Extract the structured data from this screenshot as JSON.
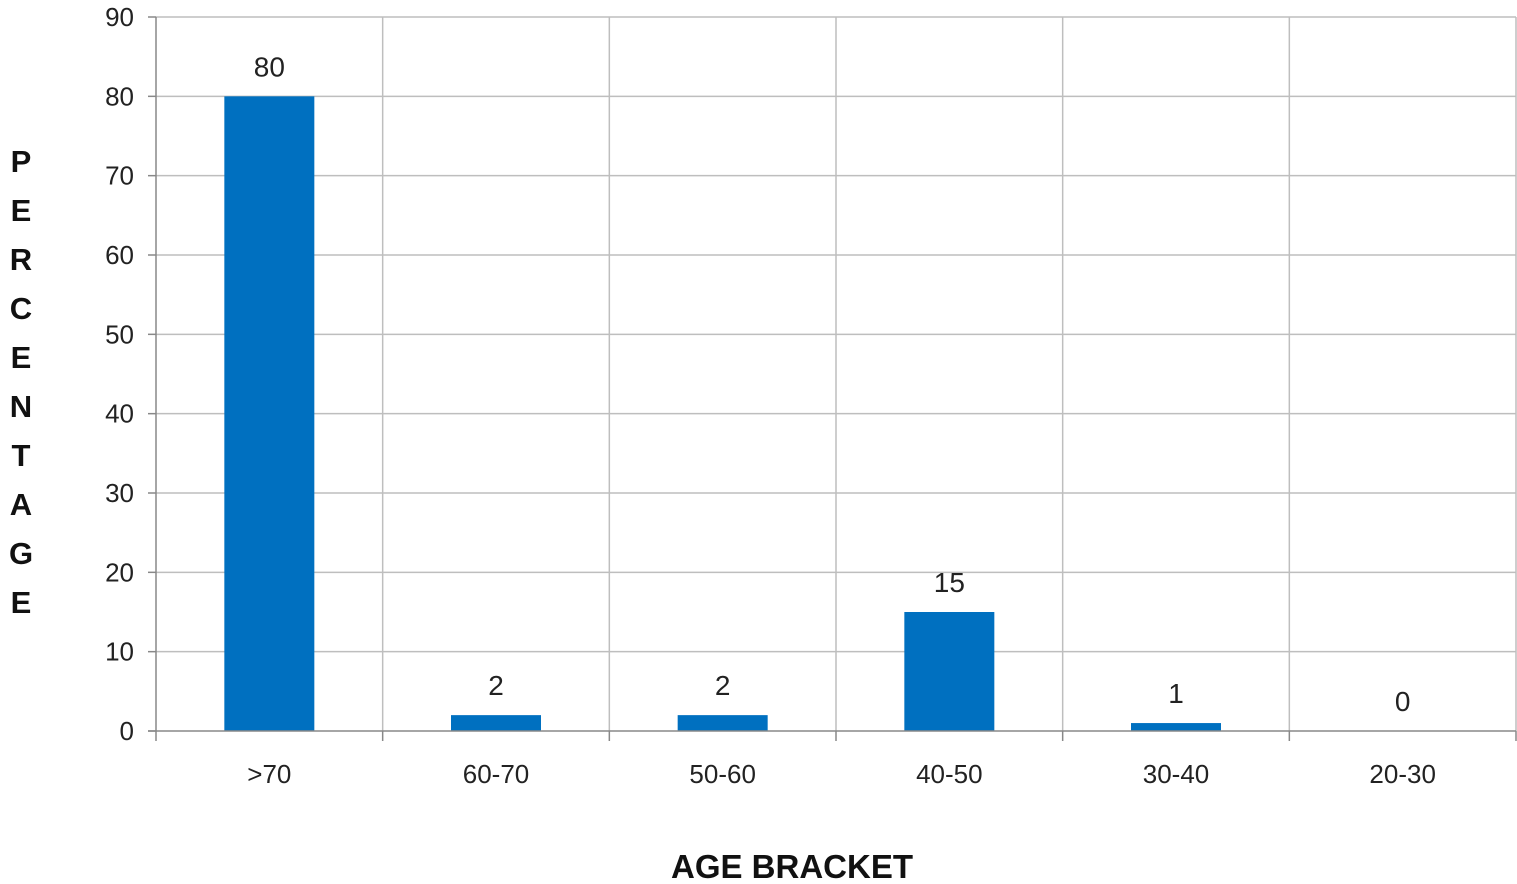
{
  "chart_data": {
    "type": "bar",
    "categories": [
      ">70",
      "60-70",
      "50-60",
      "40-50",
      "30-40",
      "20-30"
    ],
    "values": [
      80,
      2,
      2,
      15,
      1,
      0
    ],
    "data_labels": [
      "80",
      "2",
      "2",
      "15",
      "1",
      "0"
    ],
    "title": "",
    "xlabel": "AGE BRACKET",
    "ylabel": "PERCENTAGE",
    "ylim": [
      0,
      90
    ],
    "yticks": [
      0,
      10,
      20,
      30,
      40,
      50,
      60,
      70,
      80,
      90
    ],
    "grid": true,
    "legend": "none",
    "colors": {
      "bar": "#0070C0",
      "grid": "#BEBEBE",
      "axis": "#888888"
    }
  }
}
